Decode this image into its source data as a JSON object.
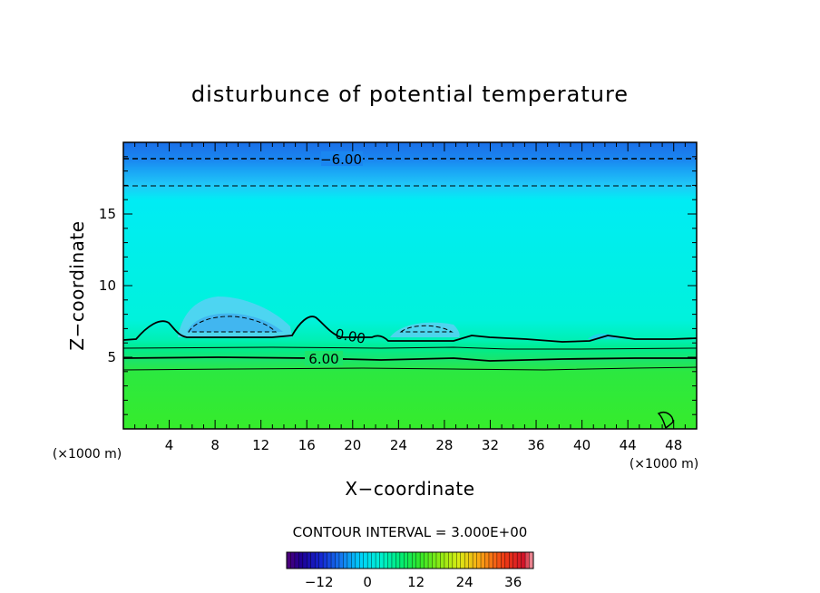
{
  "chart_data": {
    "type": "heatmap",
    "title": "disturbunce of potential temperature",
    "xlabel": "X−coordinate",
    "ylabel": "Z−coordinate",
    "x_unit_label": "(×1000 m)",
    "x_unit_label_right": "(×1000 m)",
    "xlim": [
      0,
      50
    ],
    "ylim": [
      0,
      20
    ],
    "x_ticks": [
      4,
      8,
      12,
      16,
      20,
      24,
      28,
      32,
      36,
      40,
      44,
      48
    ],
    "y_ticks": [
      5,
      10,
      15
    ],
    "contour_interval_text": "CONTOUR INTERVAL = 3.000E+00",
    "contour_labels": [
      "−6.00",
      "0.00",
      "6.00"
    ],
    "colorbar": {
      "min": -20,
      "max": 41,
      "tick_values": [
        -12,
        0,
        12,
        24,
        36
      ],
      "tick_labels": [
        "−12",
        "0",
        "12",
        "24",
        "36"
      ]
    },
    "zones": [
      {
        "z_bottom": 18.5,
        "z_top": 20,
        "value": -9
      },
      {
        "z_bottom": 16.5,
        "z_top": 18.5,
        "value": -6
      },
      {
        "z_bottom": 6.5,
        "z_top": 16.5,
        "value": 0
      },
      {
        "z_bottom": 5.5,
        "z_top": 6.5,
        "value": 3
      },
      {
        "z_bottom": 0,
        "z_top": 5.5,
        "value": 9
      }
    ]
  }
}
